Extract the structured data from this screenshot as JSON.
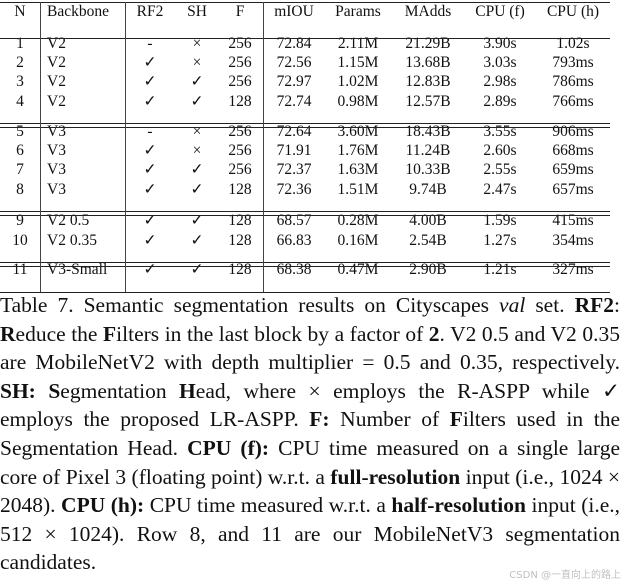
{
  "table": {
    "headers": [
      "N",
      "Backbone",
      "RF2",
      "SH",
      "F",
      "mIOU",
      "Params",
      "MAdds",
      "CPU (f)",
      "CPU (h)"
    ],
    "rows": [
      [
        "1",
        "V2",
        "-",
        "×",
        "256",
        "72.84",
        "2.11M",
        "21.29B",
        "3.90s",
        "1.02s"
      ],
      [
        "2",
        "V2",
        "✓",
        "×",
        "256",
        "72.56",
        "1.15M",
        "13.68B",
        "3.03s",
        "793ms"
      ],
      [
        "3",
        "V2",
        "✓",
        "✓",
        "256",
        "72.97",
        "1.02M",
        "12.83B",
        "2.98s",
        "786ms"
      ],
      [
        "4",
        "V2",
        "✓",
        "✓",
        "128",
        "72.74",
        "0.98M",
        "12.57B",
        "2.89s",
        "766ms"
      ],
      [
        "5",
        "V3",
        "-",
        "×",
        "256",
        "72.64",
        "3.60M",
        "18.43B",
        "3.55s",
        "906ms"
      ],
      [
        "6",
        "V3",
        "✓",
        "×",
        "256",
        "71.91",
        "1.76M",
        "11.24B",
        "2.60s",
        "668ms"
      ],
      [
        "7",
        "V3",
        "✓",
        "✓",
        "256",
        "72.37",
        "1.63M",
        "10.33B",
        "2.55s",
        "659ms"
      ],
      [
        "8",
        "V3",
        "✓",
        "✓",
        "128",
        "72.36",
        "1.51M",
        "9.74B",
        "2.47s",
        "657ms"
      ],
      [
        "9",
        "V2 0.5",
        "✓",
        "✓",
        "128",
        "68.57",
        "0.28M",
        "4.00B",
        "1.59s",
        "415ms"
      ],
      [
        "10",
        "V2 0.35",
        "✓",
        "✓",
        "128",
        "66.83",
        "0.16M",
        "2.54B",
        "1.27s",
        "354ms"
      ],
      [
        "11",
        "V3-Small",
        "✓",
        "✓",
        "128",
        "68.38",
        "0.47M",
        "2.90B",
        "1.21s",
        "327ms"
      ]
    ]
  },
  "caption": {
    "p1": "Table 7. Semantic segmentation results on Cityscapes ",
    "p1_italic": "val",
    "p1_end": " set.",
    "rf2_label": "RF2",
    "rf2_colon": ": ",
    "rf2_R": "R",
    "rf2_t1": "educe the ",
    "rf2_F": "F",
    "rf2_t2": "ilters in the last block by a factor of ",
    "rf2_2": "2",
    "rf2_t3": ".  V2 0.5 and V2 0.35 are MobileNetV2 with depth multiplier = 0.5 and 0.35, respectively.  ",
    "sh_label": "SH:",
    "sh_S": "S",
    "sh_t1": "egmentation ",
    "sh_H": "H",
    "sh_t2": "ead, where × employs the R-ASPP while ✓ employs the proposed LR-ASPP. ",
    "f_label": "F:",
    "f_t1": " Number of ",
    "f_F": "F",
    "f_t2": "ilters used in the Segmentation Head.  ",
    "cpuf_label": "CPU (f):",
    "cpuf_t1": " CPU time measured on a single large core of Pixel 3 (floating point) w.r.t. a ",
    "cpuf_bold": "full-resolution",
    "cpuf_t2": " input (i.e., 1024 × 2048).  ",
    "cpuh_label": "CPU (h):",
    "cpuh_t1": " CPU time measured w.r.t. a ",
    "cpuh_bold": "half-resolution",
    "cpuh_t2": " input (i.e., 512 × 1024). Row 8, and 11 are our MobileNetV3 segmentation candidates."
  },
  "watermark": "CSDN @一直向上的路上"
}
